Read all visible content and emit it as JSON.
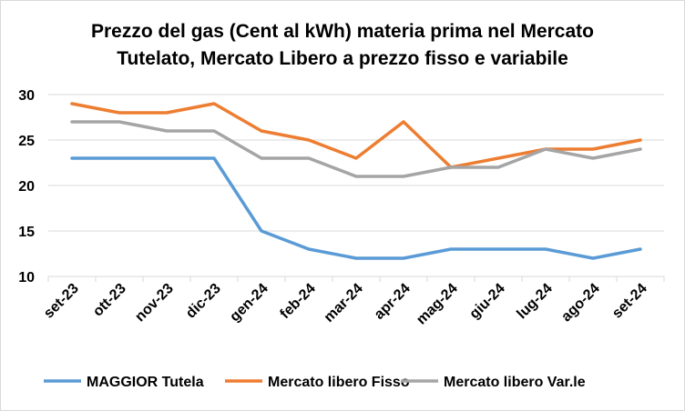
{
  "chart_data": {
    "type": "line",
    "title": [
      "Prezzo del gas (Cent al kWh) materia prima nel Mercato",
      "Tutelato, Mercato Libero a prezzo fisso e variabile"
    ],
    "xlabel": "",
    "ylabel": "",
    "categories": [
      "set-23",
      "ott-23",
      "nov-23",
      "dic-23",
      "gen-24",
      "feb-24",
      "mar-24",
      "apr-24",
      "mag-24",
      "giu-24",
      "lug-24",
      "ago-24",
      "set-24"
    ],
    "ylim": [
      10,
      30
    ],
    "yticks": [
      "10",
      "15",
      "20",
      "25",
      "30"
    ],
    "grid": true,
    "legend_position": "bottom",
    "series": [
      {
        "name": "MAGGIOR Tutela",
        "color": "#5b9bd5",
        "values": [
          23,
          23,
          23,
          23,
          15,
          13,
          12,
          12,
          13,
          13,
          13,
          12,
          13
        ]
      },
      {
        "name": "Mercato libero Fisso",
        "color": "#ed7d31",
        "values": [
          29,
          28,
          28,
          29,
          26,
          25,
          23,
          27,
          22,
          23,
          24,
          24,
          25
        ]
      },
      {
        "name": "Mercato libero Var.le",
        "color": "#a5a5a5",
        "values": [
          27,
          27,
          26,
          26,
          23,
          23,
          21,
          21,
          22,
          22,
          24,
          23,
          24
        ]
      }
    ]
  }
}
